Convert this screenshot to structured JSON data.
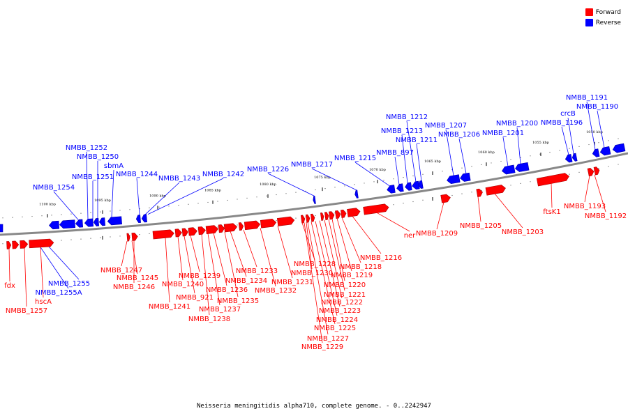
{
  "colors": {
    "forward": "#ff0000",
    "reverse": "#0000ff",
    "backbone": "#888888"
  },
  "legend": {
    "forward_label": "Forward",
    "reverse_label": "Reverse"
  },
  "caption": "Neisseria meningitidis alpha710, complete genome. - 0..2242947",
  "scale_labels": [
    "1100 kbp",
    "1095 kbp",
    "1090 kbp",
    "1085 kbp",
    "1080 kbp",
    "1075 kbp",
    "1070 kbp",
    "1065 kbp",
    "1060 kbp",
    "1055 kbp",
    "1050 kbp"
  ],
  "reverse_genes": [
    "NMBB_1254",
    "NMBB_1252",
    "NMBB_1250",
    "NMBB_1251",
    "sbmA",
    "NMBB_1244",
    "NMBB_1243",
    "NMBB_1242",
    "NMBB_1226",
    "NMBB_1217",
    "NMBB_1215",
    "NMBB_897",
    "NMBB_1213",
    "NMBB_1212",
    "NMBB_1211",
    "NMBB_1207",
    "NMBB_1206",
    "NMBB_1201",
    "NMBB_1200",
    "NMBB_1196",
    "crcB",
    "NMBB_1191",
    "NMBB_1190",
    "NMBB_1255",
    "NMBB_1255A"
  ],
  "forward_genes": [
    "fdx",
    "NMBB_1257",
    "hscA",
    "NMBB_1247",
    "NMBB_1245",
    "NMBB_1246",
    "NMBB_1241",
    "NMBB_1240",
    "NMBB_921",
    "NMBB_1239",
    "NMBB_1238",
    "NMBB_1237",
    "NMBB_1236",
    "NMBB_1235",
    "NMBB_1234",
    "NMBB_1233",
    "NMBB_1232",
    "NMBB_1231",
    "NMBB_1230",
    "NMBB_1228",
    "NMBB_1229",
    "NMBB_1227",
    "NMBB_1225",
    "NMBB_1224",
    "NMBB_1223",
    "NMBB_1222",
    "NMBB_1221",
    "NMBB_1220",
    "NMBB_1219",
    "NMBB_1218",
    "NMBB_1216",
    "ner",
    "NMBB_1209",
    "NMBB_1205",
    "NMBB_1203",
    "ftsK1",
    "NMBB_1193",
    "NMBB_1192"
  ]
}
